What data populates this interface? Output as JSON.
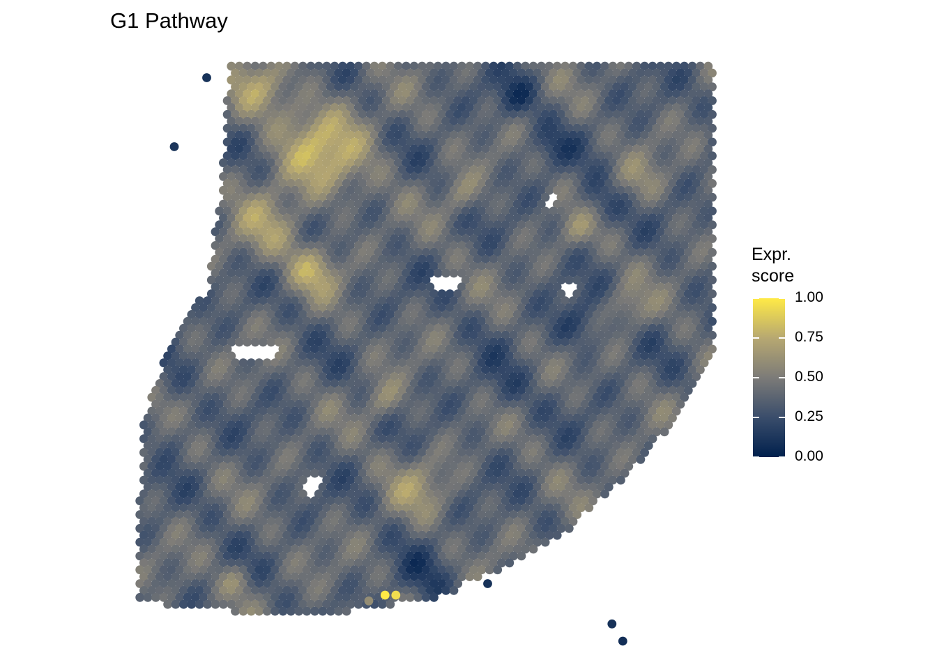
{
  "chart_data": {
    "type": "scatter",
    "title": "G1 Pathway",
    "legend": {
      "title": "Expr.\nscore",
      "position": "right",
      "ticks": [
        "1.00",
        "0.75",
        "0.50",
        "0.25",
        "0.00"
      ],
      "range": [
        0,
        1
      ],
      "colormap": [
        "#00204D",
        "#3A4D6B",
        "#7C7B78",
        "#B7A871",
        "#FFEA46"
      ]
    },
    "grid": false,
    "axes": false,
    "points": [
      {
        "x": 0.06,
        "y": 0.98,
        "value": 0.1
      },
      {
        "x": 0.0,
        "y": 0.86,
        "value": 0.12
      },
      {
        "x": 0.83,
        "y": 0.0,
        "value": 0.08
      },
      {
        "x": 0.81,
        "y": 0.03,
        "value": 0.1
      },
      {
        "x": 0.58,
        "y": 0.1,
        "value": 0.1
      },
      {
        "x": 0.41,
        "y": 0.08,
        "value": 0.95
      },
      {
        "x": 0.39,
        "y": 0.08,
        "value": 1.0
      },
      {
        "x": 0.36,
        "y": 0.07,
        "value": 0.6
      }
    ]
  }
}
